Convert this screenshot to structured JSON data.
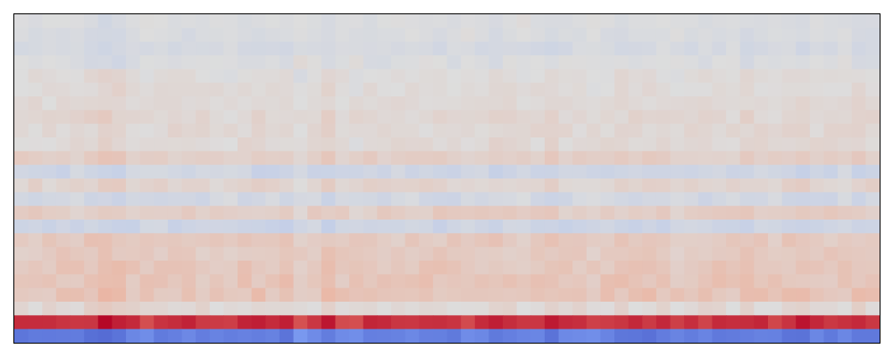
{
  "chart_data": {
    "type": "heatmap",
    "colormap": "coolwarm",
    "title": "",
    "xlabel": "",
    "ylabel": "",
    "axes_visible": false,
    "n_cols": 62,
    "n_rows": 24,
    "value_range": [
      -1,
      1
    ],
    "row_levels": [
      -0.01,
      -0.02,
      -0.04,
      -0.01,
      0.01,
      0.02,
      0.03,
      0.05,
      0.04,
      0.03,
      0.1,
      -0.08,
      0.07,
      -0.06,
      0.11,
      -0.09,
      0.14,
      0.13,
      0.16,
      0.17,
      0.18,
      0.04,
      0.82,
      -0.72
    ],
    "row_amplitude": [
      0.02,
      0.02,
      0.03,
      0.03,
      0.03,
      0.03,
      0.03,
      0.04,
      0.04,
      0.04,
      0.04,
      0.04,
      0.04,
      0.04,
      0.05,
      0.04,
      0.05,
      0.05,
      0.05,
      0.06,
      0.06,
      0.05,
      0.06,
      0.06
    ],
    "column_profile": [
      0.01,
      0.02,
      0.0,
      0.03,
      0.01,
      0.06,
      0.12,
      0.1,
      0.02,
      -0.01,
      0.0,
      0.02,
      0.03,
      0.01,
      0.0,
      -0.02,
      0.03,
      0.04,
      0.02,
      0.05,
      -0.05,
      0.01,
      0.08,
      0.0,
      -0.02,
      0.04,
      0.02,
      0.0,
      -0.01,
      0.01,
      0.03,
      0.02,
      -0.03,
      0.0,
      0.05,
      0.01,
      -0.02,
      0.03,
      0.06,
      0.02,
      0.0,
      -0.01,
      0.02,
      0.04,
      0.01,
      0.03,
      0.0,
      -0.02,
      0.01,
      0.02,
      0.03,
      0.0,
      0.05,
      0.02,
      0.01,
      0.04,
      0.06,
      0.03,
      0.02,
      0.0,
      0.05,
      0.03
    ]
  }
}
